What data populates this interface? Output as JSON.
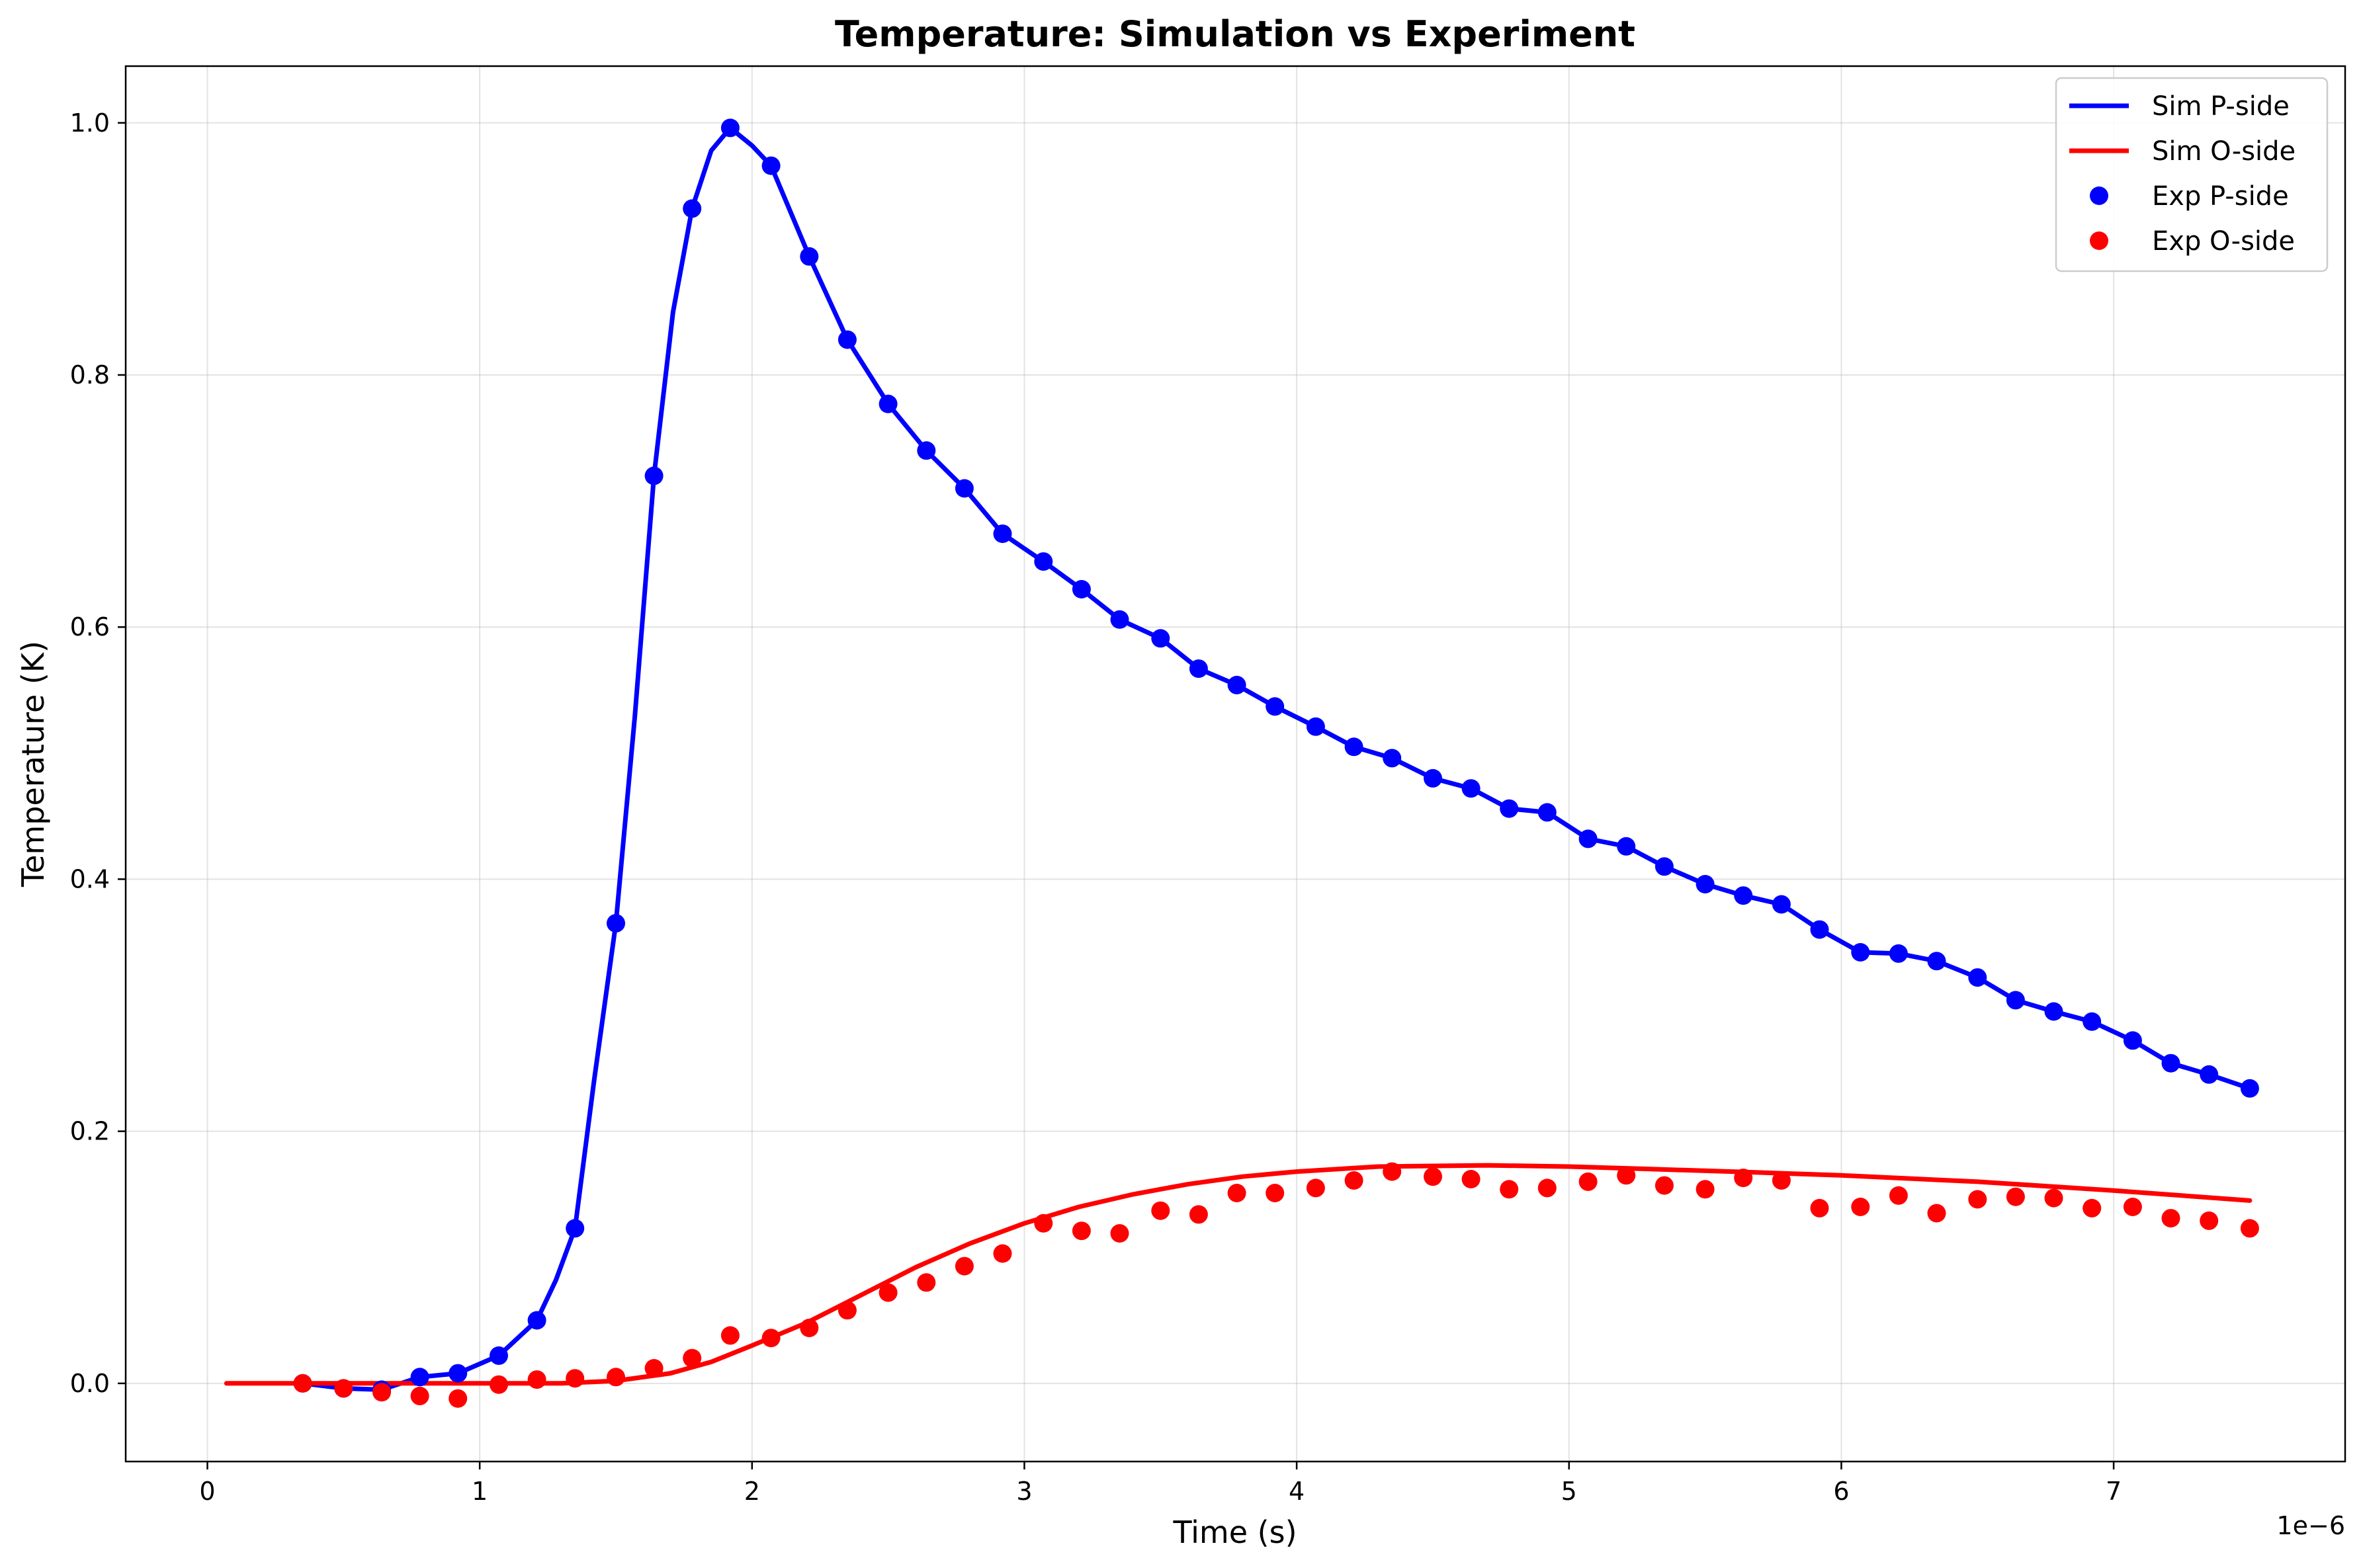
{
  "chart_data": {
    "type": "line",
    "title": "Temperature: Simulation vs Experiment",
    "xlabel": "Time (s)",
    "ylabel": "Temperature (K)",
    "x_offset_label": "1e−6",
    "xlim": [
      -0.3,
      7.85
    ],
    "ylim": [
      -0.062,
      1.045
    ],
    "x_ticks": [
      0,
      1,
      2,
      3,
      4,
      5,
      6,
      7
    ],
    "x_tick_labels": [
      "0",
      "1",
      "2",
      "3",
      "4",
      "5",
      "6",
      "7"
    ],
    "y_ticks": [
      0.0,
      0.2,
      0.4,
      0.6,
      0.8,
      1.0
    ],
    "y_tick_labels": [
      "0.0",
      "0.2",
      "0.4",
      "0.6",
      "0.8",
      "1.0"
    ],
    "grid": true,
    "legend_position": "top-right",
    "colors": {
      "blue": "#0000ff",
      "red": "#ff0000"
    },
    "series": [
      {
        "name": "Sim P-side",
        "kind": "line",
        "color": "#0000ff",
        "x": [
          0.35,
          0.5,
          0.64,
          0.78,
          0.92,
          1.07,
          1.21,
          1.28,
          1.35,
          1.42,
          1.5,
          1.57,
          1.64,
          1.71,
          1.78,
          1.85,
          1.92,
          2.0,
          2.07,
          2.21,
          2.35,
          2.5,
          2.64,
          2.78,
          2.92,
          3.07,
          3.21,
          3.35,
          3.5,
          3.64,
          3.78,
          3.92,
          4.07,
          4.21,
          4.35,
          4.5,
          4.64,
          4.78,
          4.92,
          5.07,
          5.21,
          5.35,
          5.5,
          5.64,
          5.78,
          5.92,
          6.07,
          6.21,
          6.35,
          6.5,
          6.64,
          6.78,
          6.92,
          7.07,
          7.21,
          7.35,
          7.5
        ],
        "y": [
          0.0,
          -0.004,
          -0.005,
          0.005,
          0.008,
          0.022,
          0.05,
          0.082,
          0.123,
          0.24,
          0.365,
          0.53,
          0.72,
          0.85,
          0.932,
          0.978,
          0.996,
          0.982,
          0.966,
          0.894,
          0.828,
          0.777,
          0.74,
          0.71,
          0.674,
          0.652,
          0.63,
          0.606,
          0.591,
          0.567,
          0.554,
          0.537,
          0.521,
          0.505,
          0.496,
          0.48,
          0.472,
          0.456,
          0.453,
          0.432,
          0.426,
          0.41,
          0.396,
          0.387,
          0.38,
          0.36,
          0.342,
          0.341,
          0.335,
          0.322,
          0.304,
          0.295,
          0.287,
          0.272,
          0.254,
          0.245,
          0.234
        ]
      },
      {
        "name": "Sim O-side",
        "kind": "line",
        "color": "#ff0000",
        "x": [
          0.07,
          0.5,
          1.0,
          1.3,
          1.5,
          1.7,
          1.85,
          2.0,
          2.2,
          2.4,
          2.6,
          2.8,
          3.0,
          3.2,
          3.4,
          3.6,
          3.8,
          4.0,
          4.3,
          4.7,
          5.0,
          5.3,
          5.6,
          6.0,
          6.5,
          7.0,
          7.5
        ],
        "y": [
          0.0,
          0.0,
          0.0,
          0.0,
          0.002,
          0.008,
          0.017,
          0.03,
          0.048,
          0.07,
          0.092,
          0.111,
          0.127,
          0.14,
          0.15,
          0.158,
          0.164,
          0.168,
          0.172,
          0.173,
          0.172,
          0.17,
          0.168,
          0.165,
          0.16,
          0.153,
          0.145
        ]
      },
      {
        "name": "Exp P-side",
        "kind": "scatter",
        "color": "#0000ff",
        "x": [
          0.35,
          0.5,
          0.64,
          0.78,
          0.92,
          1.07,
          1.21,
          1.35,
          1.5,
          1.64,
          1.78,
          1.92,
          2.07,
          2.21,
          2.35,
          2.5,
          2.64,
          2.78,
          2.92,
          3.07,
          3.21,
          3.35,
          3.5,
          3.64,
          3.78,
          3.92,
          4.07,
          4.21,
          4.35,
          4.5,
          4.64,
          4.78,
          4.92,
          5.07,
          5.21,
          5.35,
          5.5,
          5.64,
          5.78,
          5.92,
          6.07,
          6.21,
          6.35,
          6.5,
          6.64,
          6.78,
          6.92,
          7.07,
          7.21,
          7.35,
          7.5
        ],
        "y": [
          0.0,
          -0.004,
          -0.005,
          0.005,
          0.008,
          0.022,
          0.05,
          0.123,
          0.365,
          0.72,
          0.932,
          0.996,
          0.966,
          0.894,
          0.828,
          0.777,
          0.74,
          0.71,
          0.674,
          0.652,
          0.63,
          0.606,
          0.591,
          0.567,
          0.554,
          0.537,
          0.521,
          0.505,
          0.496,
          0.48,
          0.472,
          0.456,
          0.453,
          0.432,
          0.426,
          0.41,
          0.396,
          0.387,
          0.38,
          0.36,
          0.342,
          0.341,
          0.335,
          0.322,
          0.304,
          0.295,
          0.287,
          0.272,
          0.254,
          0.245,
          0.234
        ]
      },
      {
        "name": "Exp O-side",
        "kind": "scatter",
        "color": "#ff0000",
        "x": [
          0.35,
          0.5,
          0.64,
          0.78,
          0.92,
          1.07,
          1.21,
          1.35,
          1.5,
          1.64,
          1.78,
          1.92,
          2.07,
          2.21,
          2.35,
          2.5,
          2.64,
          2.78,
          2.92,
          3.07,
          3.21,
          3.35,
          3.5,
          3.64,
          3.78,
          3.92,
          4.07,
          4.21,
          4.35,
          4.5,
          4.64,
          4.78,
          4.92,
          5.07,
          5.21,
          5.35,
          5.5,
          5.64,
          5.78,
          5.92,
          6.07,
          6.21,
          6.35,
          6.5,
          6.64,
          6.78,
          6.92,
          7.07,
          7.21,
          7.35,
          7.5
        ],
        "y": [
          0.0,
          -0.004,
          -0.007,
          -0.01,
          -0.012,
          -0.001,
          0.003,
          0.004,
          0.005,
          0.012,
          0.02,
          0.038,
          0.036,
          0.044,
          0.058,
          0.072,
          0.08,
          0.093,
          0.103,
          0.127,
          0.121,
          0.119,
          0.137,
          0.134,
          0.151,
          0.151,
          0.155,
          0.161,
          0.168,
          0.164,
          0.162,
          0.154,
          0.155,
          0.16,
          0.165,
          0.157,
          0.154,
          0.163,
          0.161,
          0.139,
          0.14,
          0.149,
          0.135,
          0.146,
          0.148,
          0.147,
          0.139,
          0.14,
          0.131,
          0.129,
          0.123
        ]
      }
    ]
  }
}
